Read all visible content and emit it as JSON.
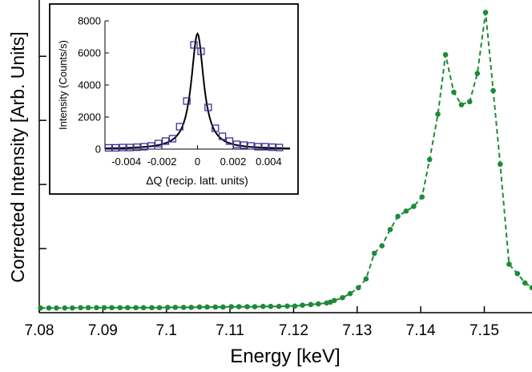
{
  "chart_data": [
    {
      "type": "line",
      "title": "",
      "xlabel": "Energy [keV]",
      "ylabel": "Corrected Intensity [Arb. Units]",
      "xlim": [
        7.08,
        7.1575
      ],
      "ylim": [
        0,
        1.0
      ],
      "x_ticks": [
        "7.08",
        "7.09",
        "7.1",
        "7.11",
        "7.12",
        "7.13",
        "7.14",
        "7.15"
      ],
      "grid": false,
      "legend": "none",
      "series": [
        {
          "color": "#1e8a3a",
          "style": "dashed-with-markers",
          "x": [
            7.0802,
            7.0815,
            7.0827,
            7.084,
            7.0852,
            7.0865,
            7.0877,
            7.089,
            7.0902,
            7.0914,
            7.0927,
            7.0939,
            7.0952,
            7.0964,
            7.0977,
            7.0989,
            7.1002,
            7.1014,
            7.1027,
            7.1039,
            7.1052,
            7.1064,
            7.1077,
            7.1089,
            7.1102,
            7.1114,
            7.1127,
            7.1139,
            7.1152,
            7.1164,
            7.1177,
            7.119,
            7.1202,
            7.1214,
            7.1227,
            7.1239,
            7.1252,
            7.1258,
            7.1264,
            7.1277,
            7.1289,
            7.1302,
            7.1314,
            7.1327,
            7.1339,
            7.1352,
            7.1364,
            7.1377,
            7.1389,
            7.1402,
            7.1414,
            7.1427,
            7.1439,
            7.1452,
            7.1464,
            7.1477,
            7.1489,
            7.1502,
            7.1514,
            7.1525,
            7.1539,
            7.1552,
            7.1564,
            7.1575
          ],
          "y": [
            0.015,
            0.015,
            0.015,
            0.015,
            0.015,
            0.016,
            0.016,
            0.016,
            0.016,
            0.016,
            0.016,
            0.016,
            0.016,
            0.016,
            0.016,
            0.016,
            0.017,
            0.017,
            0.017,
            0.017,
            0.018,
            0.018,
            0.018,
            0.018,
            0.019,
            0.019,
            0.019,
            0.019,
            0.02,
            0.02,
            0.02,
            0.021,
            0.021,
            0.024,
            0.026,
            0.028,
            0.031,
            0.034,
            0.039,
            0.048,
            0.061,
            0.08,
            0.108,
            0.19,
            0.214,
            0.266,
            0.308,
            0.325,
            0.34,
            0.37,
            0.49,
            0.635,
            0.825,
            0.705,
            0.665,
            0.675,
            0.765,
            0.96,
            0.71,
            0.475,
            0.155,
            0.125,
            0.095,
            0.08
          ],
          "y_normalized_note_removed": true
        }
      ]
    },
    {
      "type": "scatter",
      "title": "",
      "xlabel": "ΔQ (recip. latt. units)",
      "ylabel": "Intensity (Counts/s)",
      "xlim": [
        -0.0052,
        0.0052
      ],
      "ylim": [
        0,
        8000
      ],
      "x_ticks": [
        "-0.004",
        "-0.002",
        "0",
        "0.002",
        "0.004"
      ],
      "y_ticks": [
        "0",
        "2000",
        "4000",
        "6000",
        "8000"
      ],
      "grid": false,
      "legend": "none",
      "series": [
        {
          "color": "#3b2f9a",
          "marker": "open-square",
          "x": [
            -0.005,
            -0.0046,
            -0.0042,
            -0.0038,
            -0.0034,
            -0.003,
            -0.0026,
            -0.0022,
            -0.0018,
            -0.0014,
            -0.001,
            -0.0006,
            -0.0002,
            0.0002,
            0.0006,
            0.001,
            0.0014,
            0.0018,
            0.0022,
            0.0026,
            0.003,
            0.0034,
            0.0038,
            0.0042,
            0.0046
          ],
          "y": [
            80,
            80,
            100,
            100,
            120,
            150,
            200,
            350,
            500,
            650,
            1400,
            3000,
            6500,
            6100,
            2600,
            1300,
            800,
            500,
            300,
            250,
            200,
            150,
            150,
            120,
            100
          ]
        },
        {
          "color": "#000000",
          "style": "solid",
          "fit": "lorentzian",
          "amplitude": 7200,
          "center": 0.0,
          "hwhm": 0.00042
        }
      ]
    }
  ]
}
